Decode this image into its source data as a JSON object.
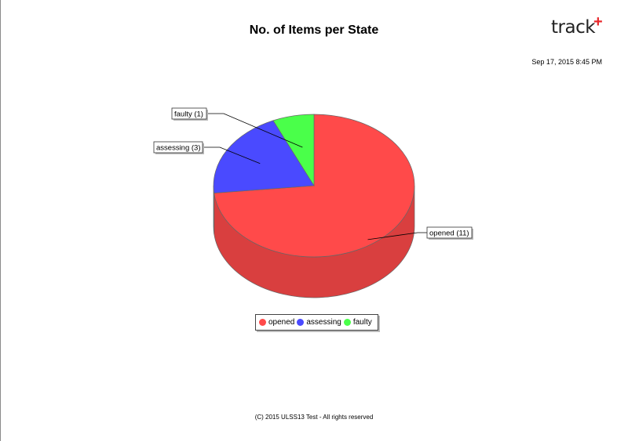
{
  "colors": {
    "opened": "#ff4a4a",
    "assessing": "#4a4aff",
    "faulty": "#4aff4a"
  },
  "report": {
    "title": "No. of Items per State",
    "timestamp": "Sep 17, 2015 8:45 PM",
    "footer": "(C) 2015 ULSS13 Test - All rights reserved",
    "logo_text": "track",
    "logo_symbol": "+",
    "logo_symbol_color": "#e8282b"
  },
  "chart_data": {
    "type": "pie",
    "title": "No. of Items per State",
    "categories": [
      "opened",
      "assessing",
      "faulty"
    ],
    "values": [
      11,
      3,
      1
    ],
    "labels": [
      "opened (11)",
      "assessing (3)",
      "faulty (1)"
    ],
    "legend_position": "bottom"
  }
}
